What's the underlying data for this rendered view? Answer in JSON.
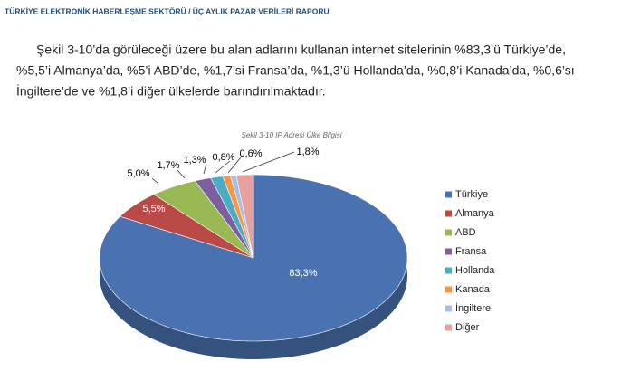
{
  "header": {
    "title": "TÜRKİYE ELEKTRONİK HABERLEŞME SEKTÖRÜ / ÜÇ AYLIK PAZAR VERİLERİ RAPORU"
  },
  "paragraph": {
    "lines": [
      "Şekil 3-10’da görüleceği üzere bu alan adlarını kullanan internet sitelerinin %83,3’ü Türkiye’de,",
      "%5,5’i Almanya’da, %5’i ABD’de, %1,7’si Fransa’da, %1,3’ü Hollanda’da, %0,8’i Kanada’da, %0,6’sı",
      "İngiltere’de ve %1,8’i diğer ülkelerde barındırılmaktadır."
    ]
  },
  "chart_data": {
    "type": "pie",
    "title": "Şekil 3-10 IP Adresi Ülke Bilgisi",
    "categories": [
      "Türkiye",
      "Almanya",
      "ABD",
      "Fransa",
      "Hollanda",
      "Kanada",
      "İngiltere",
      "Diğer"
    ],
    "values": [
      83.3,
      5.5,
      5.0,
      1.7,
      1.3,
      0.8,
      0.6,
      1.8
    ],
    "value_labels": [
      "83,3%",
      "5,5%",
      "5,0%",
      "1,7%",
      "1,3%",
      "0,8%",
      "0,6%",
      "1,8%"
    ],
    "colors": [
      "#4a72b0",
      "#b94a48",
      "#98b954",
      "#7d5fa0",
      "#4bacc6",
      "#f79646",
      "#a7bfde",
      "#e6a0a0"
    ],
    "legend": "right"
  }
}
